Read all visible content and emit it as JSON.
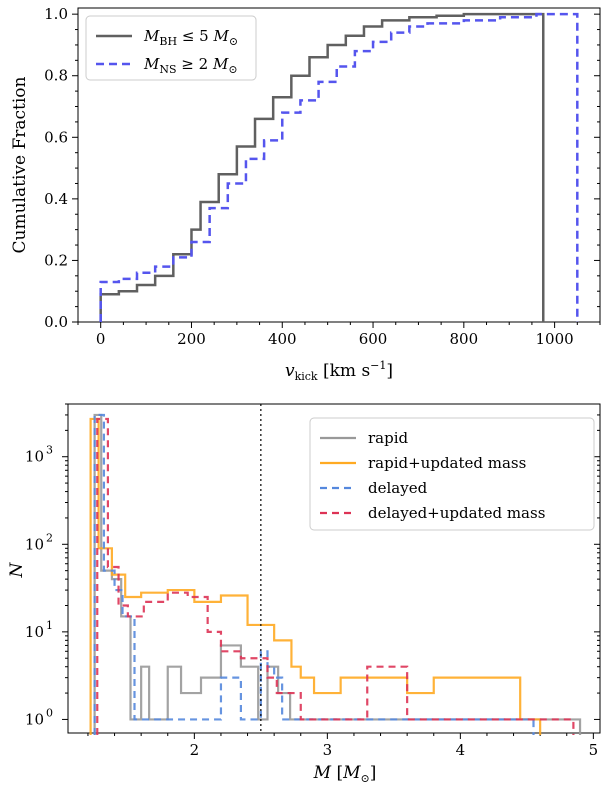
{
  "chart_data": [
    {
      "type": "line",
      "subtype": "cumulative step",
      "xlabel": "v_kick [km s^-1]",
      "xlabel_main": "v",
      "xlabel_sub": "kick",
      "xlabel_unit": "[km s",
      "xlabel_exp": "−1",
      "xlabel_close": "]",
      "ylabel": "Cumulative Fraction",
      "xlim": [
        -50,
        1100
      ],
      "ylim": [
        0,
        1.02
      ],
      "xticks": [
        0,
        200,
        400,
        600,
        800,
        1000
      ],
      "xtick_labels": [
        "0",
        "200",
        "400",
        "600",
        "800",
        "1000"
      ],
      "yticks": [
        0.0,
        0.2,
        0.4,
        0.6,
        0.8,
        1.0
      ],
      "ytick_labels": [
        "0.0",
        "0.2",
        "0.4",
        "0.6",
        "0.8",
        "1.0"
      ],
      "legend_position": "top-left",
      "series": [
        {
          "name": "M_BH ≤ 5 M_⊙",
          "label_main": "M",
          "label_sub": "BH",
          "label_rel": " ≤ 5 ",
          "label_unit": "M",
          "label_unit_sub": "⊙",
          "color": "#606060",
          "style": "solid",
          "x": [
            0,
            0,
            40,
            80,
            120,
            160,
            200,
            220,
            260,
            300,
            340,
            380,
            420,
            460,
            500,
            540,
            580,
            620,
            680,
            740,
            800,
            860,
            975,
            975
          ],
          "y": [
            0,
            0.09,
            0.1,
            0.12,
            0.15,
            0.22,
            0.3,
            0.39,
            0.48,
            0.57,
            0.66,
            0.73,
            0.8,
            0.86,
            0.9,
            0.93,
            0.96,
            0.98,
            0.99,
            0.995,
            1.0,
            1.0,
            1.0,
            0
          ]
        },
        {
          "name": "M_NS ≥ 2 M_⊙",
          "label_main": "M",
          "label_sub": "NS",
          "label_rel": " ≥ 2 ",
          "label_unit": "M",
          "label_unit_sub": "⊙",
          "color": "#5555ee",
          "style": "dashed",
          "x": [
            0,
            0,
            40,
            80,
            120,
            160,
            200,
            240,
            280,
            320,
            360,
            400,
            440,
            480,
            520,
            560,
            600,
            640,
            680,
            720,
            800,
            880,
            960,
            1050,
            1050
          ],
          "y": [
            0,
            0.13,
            0.14,
            0.16,
            0.18,
            0.21,
            0.26,
            0.37,
            0.45,
            0.53,
            0.59,
            0.68,
            0.72,
            0.78,
            0.83,
            0.88,
            0.91,
            0.94,
            0.96,
            0.97,
            0.98,
            0.99,
            1.0,
            1.0,
            0
          ]
        }
      ]
    },
    {
      "type": "histogram",
      "subtype": "step, log y",
      "xlabel": "M [M_⊙]",
      "ylabel": "N",
      "yscale": "log",
      "xlim": [
        1.05,
        5.05
      ],
      "ylim": [
        0.7,
        4000
      ],
      "xticks": [
        2,
        3,
        4,
        5
      ],
      "xtick_labels": [
        "2",
        "3",
        "4",
        "5"
      ],
      "yticks": [
        1,
        10,
        100,
        1000
      ],
      "ytick_labels": [
        "10",
        "10",
        "10",
        "10"
      ],
      "ytick_exponents": [
        "0",
        "1",
        "2",
        "3"
      ],
      "reference_line": {
        "x": 2.5,
        "style": "dotted",
        "color": "#000000"
      },
      "legend_position": "top-right",
      "series": [
        {
          "name": "rapid",
          "color": "#999999",
          "style": "solid",
          "x": [
            1.25,
            1.25,
            1.3,
            1.38,
            1.45,
            1.52,
            1.6,
            1.66,
            1.8,
            1.9,
            2.05,
            2.2,
            2.35,
            2.48,
            2.55,
            2.63,
            2.72,
            2.8,
            2.9,
            3.1,
            4.25,
            4.35,
            4.45,
            4.55,
            4.75,
            4.8,
            4.9
          ],
          "counts": [
            2700,
            3000,
            50,
            40,
            15,
            1,
            4,
            1,
            4,
            2,
            3,
            7,
            4,
            1,
            4,
            2,
            1,
            1,
            1,
            1,
            1,
            1,
            1,
            1,
            1,
            1,
            1
          ]
        },
        {
          "name": "rapid+updated mass",
          "color": "#ffaa22",
          "style": "solid",
          "x": [
            1.22,
            1.22,
            1.28,
            1.38,
            1.48,
            1.6,
            1.8,
            2.0,
            2.2,
            2.4,
            2.52,
            2.6,
            2.73,
            2.8,
            2.9,
            3.1,
            3.4,
            3.6,
            3.8,
            4.45,
            4.6
          ],
          "counts": [
            2600,
            2700,
            90,
            45,
            25,
            28,
            30,
            22,
            26,
            12,
            12,
            8,
            4,
            3,
            2,
            3,
            3,
            2,
            3,
            1,
            1
          ]
        },
        {
          "name": "delayed",
          "color": "#5588dd",
          "style": "dashed",
          "x": [
            1.25,
            1.25,
            1.32,
            1.4,
            1.46,
            1.55,
            1.7,
            1.85,
            2.0,
            2.2,
            2.35,
            2.5,
            2.55,
            2.6,
            2.66,
            2.73,
            2.8,
            2.9,
            3.0,
            3.2,
            4.3,
            4.4,
            4.55
          ],
          "counts": [
            2800,
            3000,
            50,
            30,
            15,
            1,
            1,
            1,
            1,
            3,
            1,
            6,
            4,
            3,
            1,
            1,
            1,
            1,
            1,
            1,
            1,
            1,
            1
          ]
        },
        {
          "name": "delayed+updated mass",
          "color": "#dd3355",
          "style": "dashed",
          "x": [
            1.27,
            1.27,
            1.35,
            1.43,
            1.5,
            1.62,
            1.8,
            1.95,
            2.1,
            2.2,
            2.35,
            2.5,
            2.55,
            2.62,
            2.8,
            3.05,
            3.3,
            3.45,
            3.6,
            3.85,
            4.4,
            4.6,
            4.85
          ],
          "counts": [
            2500,
            2700,
            55,
            20,
            15,
            22,
            28,
            25,
            10,
            6,
            5,
            5,
            3,
            2,
            1,
            1,
            4,
            4,
            1,
            1,
            1,
            1,
            1
          ]
        }
      ]
    }
  ]
}
